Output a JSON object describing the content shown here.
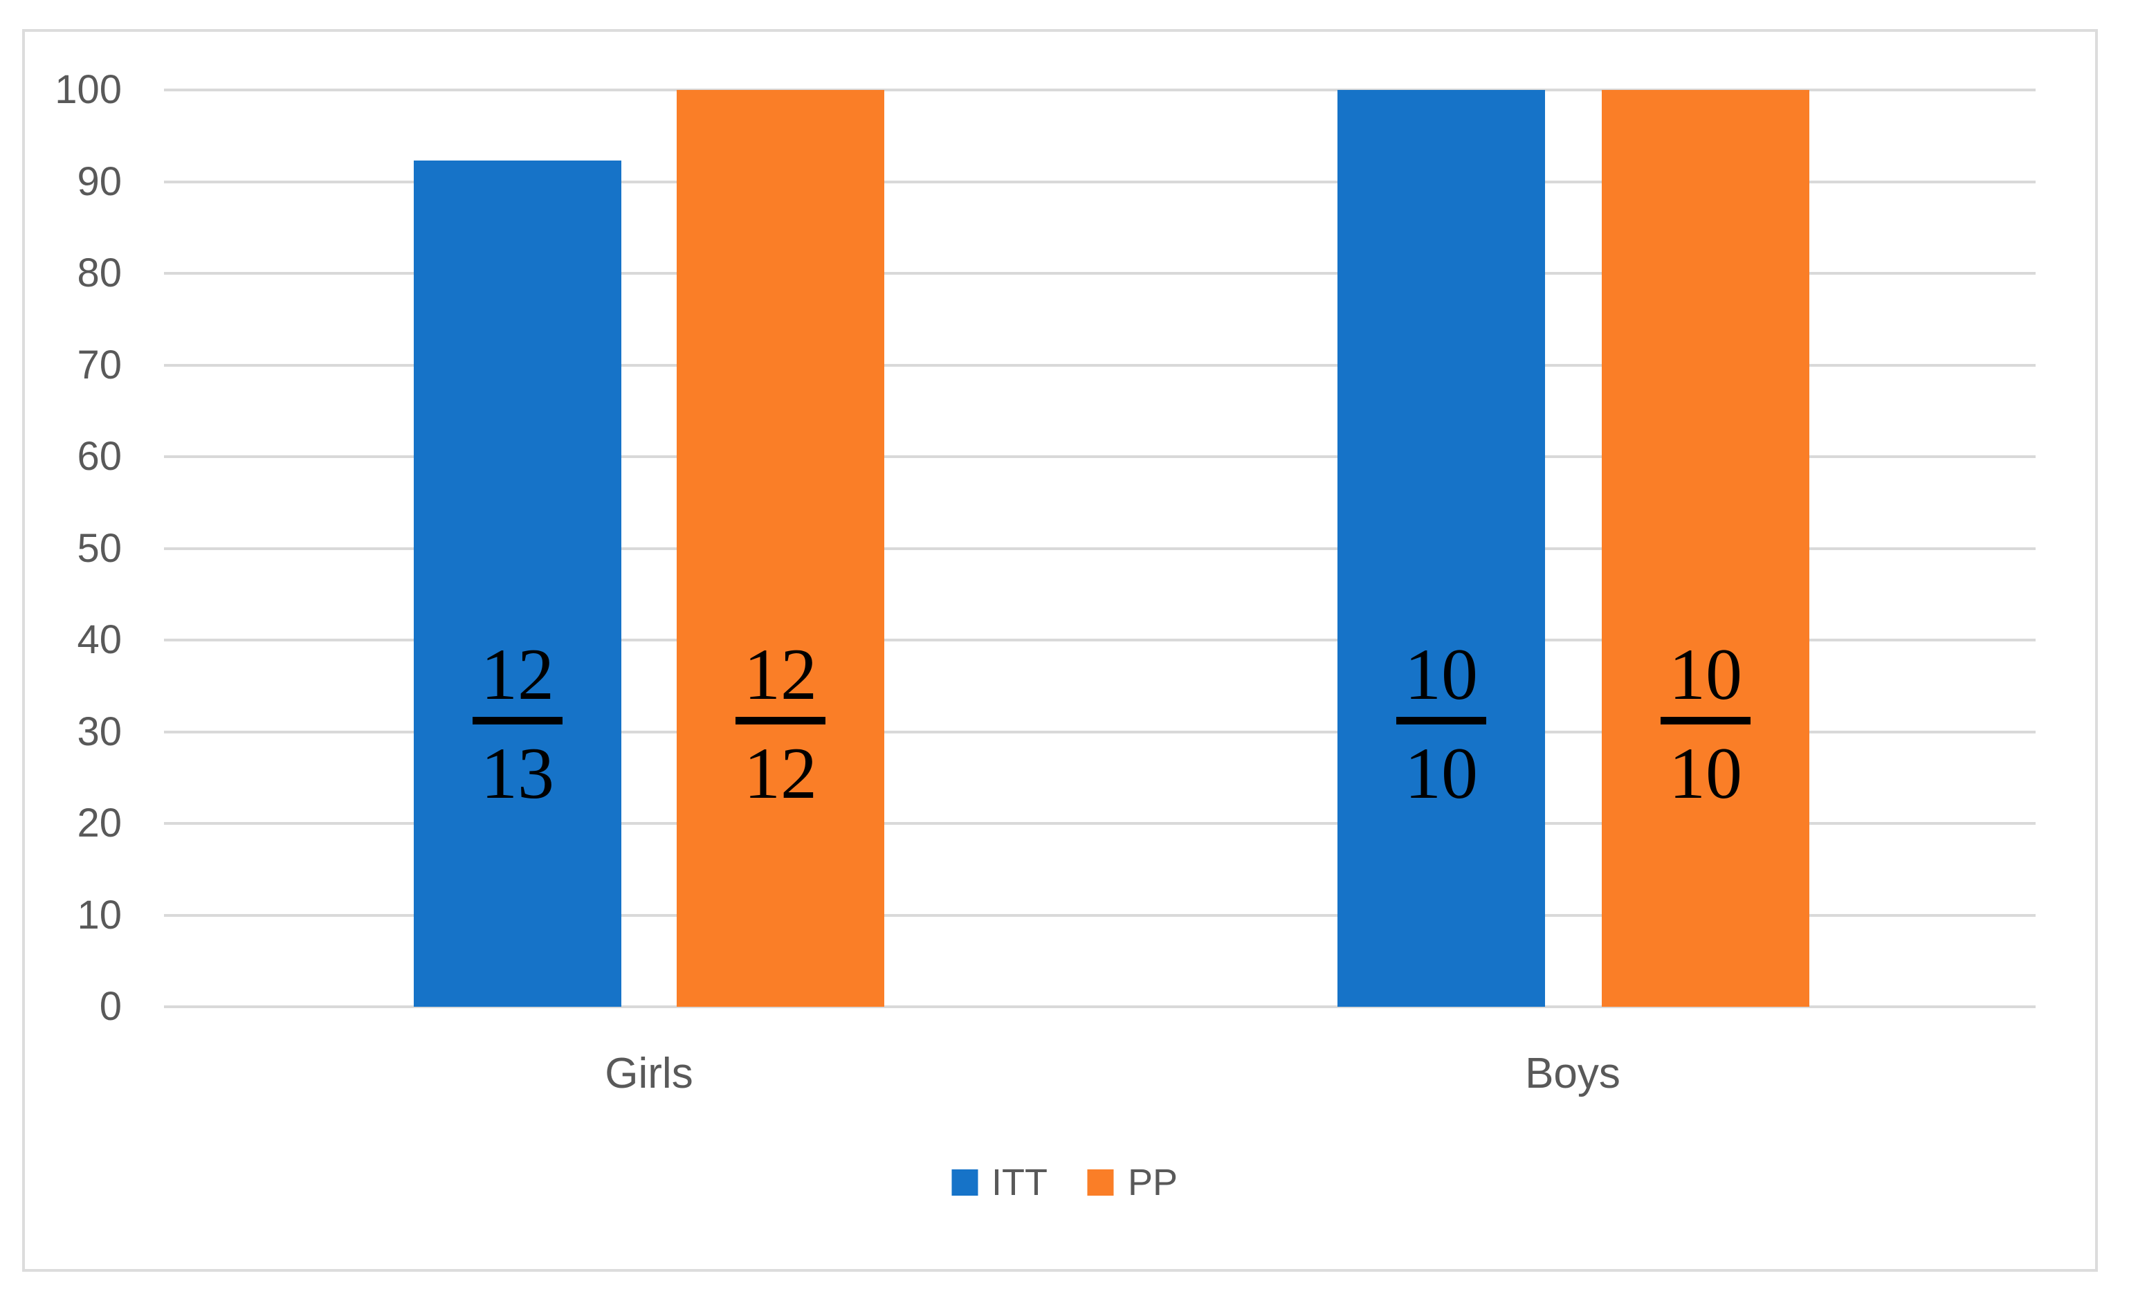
{
  "chart_data": {
    "type": "bar",
    "title": "",
    "xlabel": "",
    "ylabel": "",
    "categories": [
      "Girls",
      "Boys"
    ],
    "series": [
      {
        "name": "ITT",
        "color": "#1673C8",
        "values": [
          92.3,
          100
        ],
        "bar_labels": [
          {
            "num": "12",
            "den": "13"
          },
          {
            "num": "10",
            "den": "10"
          }
        ]
      },
      {
        "name": "PP",
        "color": "#FA7E27",
        "values": [
          100,
          100
        ],
        "bar_labels": [
          {
            "num": "12",
            "den": "12"
          },
          {
            "num": "10",
            "den": "10"
          }
        ]
      }
    ],
    "y_ticks": [
      0,
      10,
      20,
      30,
      40,
      50,
      60,
      70,
      80,
      90,
      100
    ],
    "ylim": [
      0,
      100
    ],
    "grid": true,
    "legend_position": "bottom"
  },
  "colors": {
    "gridline": "#D9D9D9",
    "frame_border": "#DCDCDC",
    "axis_text": "#595959",
    "bar_label_text": "#000000",
    "background": "#FFFFFF"
  }
}
